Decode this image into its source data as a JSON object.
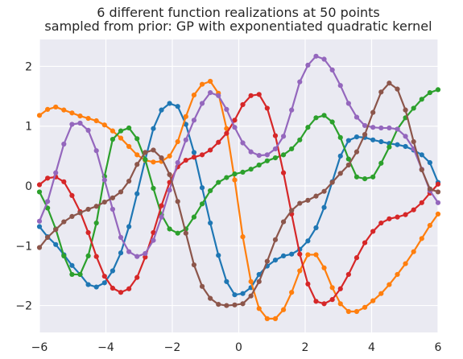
{
  "chart_data": {
    "type": "line",
    "title": "6 different function realizations at 50 points",
    "subtitle": "sampled from prior: GP with exponentiated quadratic kernel",
    "xlabel": "",
    "ylabel": "",
    "xlim": [
      -6,
      6
    ],
    "ylim": [
      -2.45,
      2.45
    ],
    "xticks": [
      "−6",
      "−4",
      "−2",
      "0",
      "2",
      "4",
      "6"
    ],
    "yticks": [
      "−2",
      "−1",
      "0",
      "1",
      "2"
    ],
    "xtick_values": [
      -6,
      -4,
      -2,
      0,
      2,
      4,
      6
    ],
    "ytick_values": [
      -2,
      -1,
      0,
      1,
      2
    ],
    "grid": true,
    "background": "#eaeaf2",
    "x": [
      -6.0,
      -5.755,
      -5.51,
      -5.265,
      -5.02,
      -4.776,
      -4.531,
      -4.286,
      -4.041,
      -3.796,
      -3.551,
      -3.306,
      -3.061,
      -2.816,
      -2.571,
      -2.327,
      -2.082,
      -1.837,
      -1.592,
      -1.347,
      -1.102,
      -0.857,
      -0.612,
      -0.367,
      -0.122,
      0.122,
      0.367,
      0.612,
      0.857,
      1.102,
      1.347,
      1.592,
      1.837,
      2.082,
      2.327,
      2.571,
      2.816,
      3.061,
      3.306,
      3.551,
      3.796,
      4.041,
      4.286,
      4.531,
      4.776,
      5.02,
      5.265,
      5.51,
      5.755,
      6.0
    ],
    "series": [
      {
        "color": "#1f77b4",
        "values": [
          -0.68,
          -0.85,
          -0.98,
          -1.15,
          -1.33,
          -1.48,
          -1.65,
          -1.69,
          -1.62,
          -1.42,
          -1.12,
          -0.68,
          -0.13,
          0.44,
          0.96,
          1.27,
          1.38,
          1.33,
          1.03,
          0.56,
          -0.03,
          -0.62,
          -1.16,
          -1.6,
          -1.82,
          -1.8,
          -1.7,
          -1.48,
          -1.34,
          -1.24,
          -1.17,
          -1.14,
          -1.06,
          -0.92,
          -0.7,
          -0.36,
          0.07,
          0.5,
          0.76,
          0.82,
          0.81,
          0.77,
          0.74,
          0.71,
          0.69,
          0.66,
          0.6,
          0.52,
          0.39,
          0.06
        ]
      },
      {
        "color": "#ff7f0e",
        "values": [
          1.18,
          1.28,
          1.32,
          1.27,
          1.22,
          1.17,
          1.13,
          1.09,
          1.02,
          0.92,
          0.8,
          0.66,
          0.52,
          0.43,
          0.4,
          0.41,
          0.5,
          0.74,
          1.16,
          1.52,
          1.7,
          1.75,
          1.55,
          0.96,
          0.1,
          -0.85,
          -1.6,
          -2.05,
          -2.22,
          -2.22,
          -2.07,
          -1.78,
          -1.42,
          -1.15,
          -1.15,
          -1.37,
          -1.7,
          -1.97,
          -2.1,
          -2.1,
          -2.03,
          -1.92,
          -1.8,
          -1.65,
          -1.48,
          -1.3,
          -1.1,
          -0.88,
          -0.66,
          -0.47
        ]
      },
      {
        "color": "#2ca02c",
        "values": [
          -0.1,
          -0.37,
          -0.72,
          -1.17,
          -1.48,
          -1.48,
          -1.17,
          -0.62,
          0.16,
          0.78,
          0.92,
          0.97,
          0.79,
          0.44,
          -0.04,
          -0.48,
          -0.72,
          -0.79,
          -0.72,
          -0.52,
          -0.3,
          -0.08,
          0.06,
          0.14,
          0.2,
          0.23,
          0.28,
          0.35,
          0.42,
          0.47,
          0.52,
          0.62,
          0.77,
          0.98,
          1.14,
          1.18,
          1.07,
          0.81,
          0.45,
          0.15,
          0.12,
          0.15,
          0.38,
          0.65,
          0.95,
          1.14,
          1.3,
          1.45,
          1.56,
          1.61
        ]
      },
      {
        "color": "#d62728",
        "values": [
          0.02,
          0.13,
          0.15,
          0.07,
          -0.16,
          -0.43,
          -0.78,
          -1.18,
          -1.51,
          -1.71,
          -1.78,
          -1.72,
          -1.53,
          -1.19,
          -0.78,
          -0.33,
          0.06,
          0.32,
          0.43,
          0.48,
          0.52,
          0.6,
          0.73,
          0.88,
          1.1,
          1.36,
          1.51,
          1.53,
          1.3,
          0.84,
          0.22,
          -0.47,
          -1.14,
          -1.64,
          -1.93,
          -1.97,
          -1.9,
          -1.72,
          -1.48,
          -1.2,
          -0.95,
          -0.76,
          -0.62,
          -0.55,
          -0.52,
          -0.48,
          -0.4,
          -0.28,
          -0.12,
          0.03
        ]
      },
      {
        "color": "#9467bd",
        "values": [
          -0.59,
          -0.26,
          0.22,
          0.7,
          1.03,
          1.05,
          0.93,
          0.59,
          0.1,
          -0.39,
          -0.86,
          -1.1,
          -1.18,
          -1.13,
          -0.91,
          -0.52,
          -0.07,
          0.39,
          0.77,
          1.1,
          1.38,
          1.56,
          1.51,
          1.28,
          0.98,
          0.72,
          0.57,
          0.51,
          0.52,
          0.62,
          0.83,
          1.27,
          1.74,
          2.02,
          2.17,
          2.12,
          1.94,
          1.68,
          1.38,
          1.15,
          1.01,
          0.98,
          0.97,
          0.97,
          0.95,
          0.83,
          0.62,
          0.28,
          -0.08,
          -0.28
        ]
      },
      {
        "color": "#8c564b",
        "values": [
          -1.03,
          -0.86,
          -0.73,
          -0.6,
          -0.51,
          -0.45,
          -0.39,
          -0.34,
          -0.27,
          -0.2,
          -0.1,
          0.08,
          0.36,
          0.56,
          0.6,
          0.47,
          0.19,
          -0.26,
          -0.79,
          -1.32,
          -1.68,
          -1.88,
          -1.98,
          -2.0,
          -1.99,
          -1.97,
          -1.84,
          -1.6,
          -1.26,
          -0.9,
          -0.6,
          -0.41,
          -0.29,
          -0.24,
          -0.17,
          -0.09,
          0.06,
          0.21,
          0.35,
          0.57,
          0.86,
          1.23,
          1.57,
          1.72,
          1.62,
          1.27,
          0.74,
          0.27,
          -0.05,
          -0.1
        ]
      }
    ]
  }
}
